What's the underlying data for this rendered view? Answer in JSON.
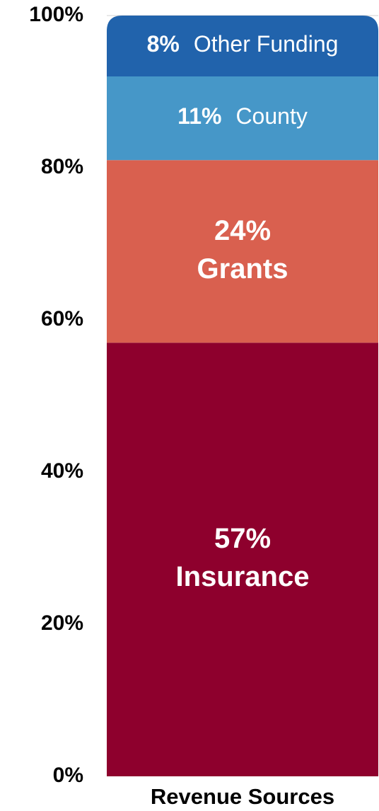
{
  "chart_data": {
    "type": "stacked_bar",
    "categories": [
      "Revenue Sources"
    ],
    "series": [
      {
        "name": "Insurance",
        "color": "#8e002d",
        "values": [
          57
        ],
        "value_labels": [
          "57%"
        ]
      },
      {
        "name": "Grants",
        "color": "#d9604f",
        "values": [
          24
        ],
        "value_labels": [
          "24%"
        ]
      },
      {
        "name": "County",
        "color": "#4697c8",
        "values": [
          11
        ],
        "value_labels": [
          "11%"
        ]
      },
      {
        "name": "Other Funding",
        "color": "#2163ac",
        "values": [
          8
        ],
        "value_labels": [
          "8%"
        ]
      }
    ],
    "ylim": [
      0,
      100
    ],
    "yticks": [
      {
        "value": 0,
        "label": "0%"
      },
      {
        "value": 20,
        "label": "20%"
      },
      {
        "value": 40,
        "label": "40%"
      },
      {
        "value": 60,
        "label": "60%"
      },
      {
        "value": 80,
        "label": "80%"
      },
      {
        "value": 100,
        "label": "100%"
      }
    ],
    "grid": false
  }
}
